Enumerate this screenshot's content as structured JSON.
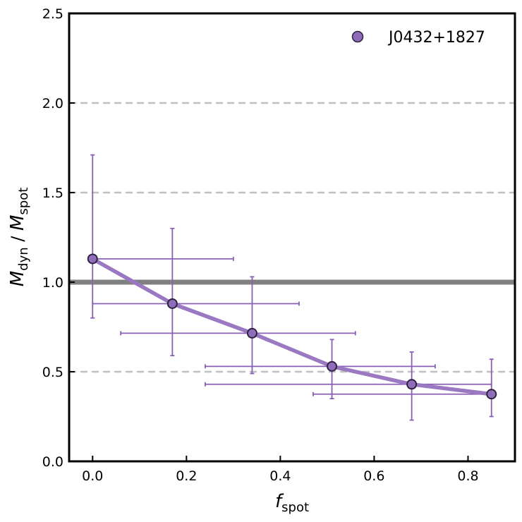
{
  "chart_data": {
    "type": "scatter",
    "title": "",
    "xlabel": {
      "main": "f",
      "sub": "spot"
    },
    "ylabel": {
      "m1": "M",
      "s1": "dyn",
      "sep": " / ",
      "m2": "M",
      "s2": "spot"
    },
    "xlim": [
      -0.05,
      0.9
    ],
    "ylim": [
      0.0,
      2.5
    ],
    "xticks": [
      0.0,
      0.2,
      0.4,
      0.6,
      0.8
    ],
    "xtick_labels": [
      "0.0",
      "0.2",
      "0.4",
      "0.6",
      "0.8"
    ],
    "yticks": [
      0.0,
      0.5,
      1.0,
      1.5,
      2.0,
      2.5
    ],
    "ytick_labels": [
      "0.0",
      "0.5",
      "1.0",
      "1.5",
      "2.0",
      "2.5"
    ],
    "reference_lines": {
      "dashed_y": [
        0.5,
        1.5,
        2.0
      ],
      "solid_y": 1.0
    },
    "legend": {
      "label": "J0432+1827",
      "position": "top-right"
    },
    "series": [
      {
        "name": "J0432+1827",
        "color": "#8e6bb8",
        "points": [
          {
            "x": 0.0,
            "y": 1.13,
            "xerr": [
              0.0,
              0.3
            ],
            "yerr": [
              0.8,
              1.71
            ]
          },
          {
            "x": 0.17,
            "y": 0.88,
            "xerr": [
              0.0,
              0.44
            ],
            "yerr": [
              0.59,
              1.3
            ]
          },
          {
            "x": 0.34,
            "y": 0.715,
            "xerr": [
              0.06,
              0.56
            ],
            "yerr": [
              0.49,
              1.03
            ]
          },
          {
            "x": 0.51,
            "y": 0.53,
            "xerr": [
              0.24,
              0.73
            ],
            "yerr": [
              0.35,
              0.68
            ]
          },
          {
            "x": 0.68,
            "y": 0.43,
            "xerr": [
              0.24,
              0.85
            ],
            "yerr": [
              0.23,
              0.61
            ]
          },
          {
            "x": 0.85,
            "y": 0.375,
            "xerr": [
              0.47,
              0.85
            ],
            "yerr": [
              0.25,
              0.57
            ]
          }
        ]
      }
    ],
    "colors": {
      "marker_fill": "#8e6bb8",
      "marker_edge": "#2e2240",
      "line": "#9a78c2",
      "errorbar": "#8a60b5",
      "grid_dashed": "#c0c0c0",
      "ref_line": "#808080"
    }
  }
}
